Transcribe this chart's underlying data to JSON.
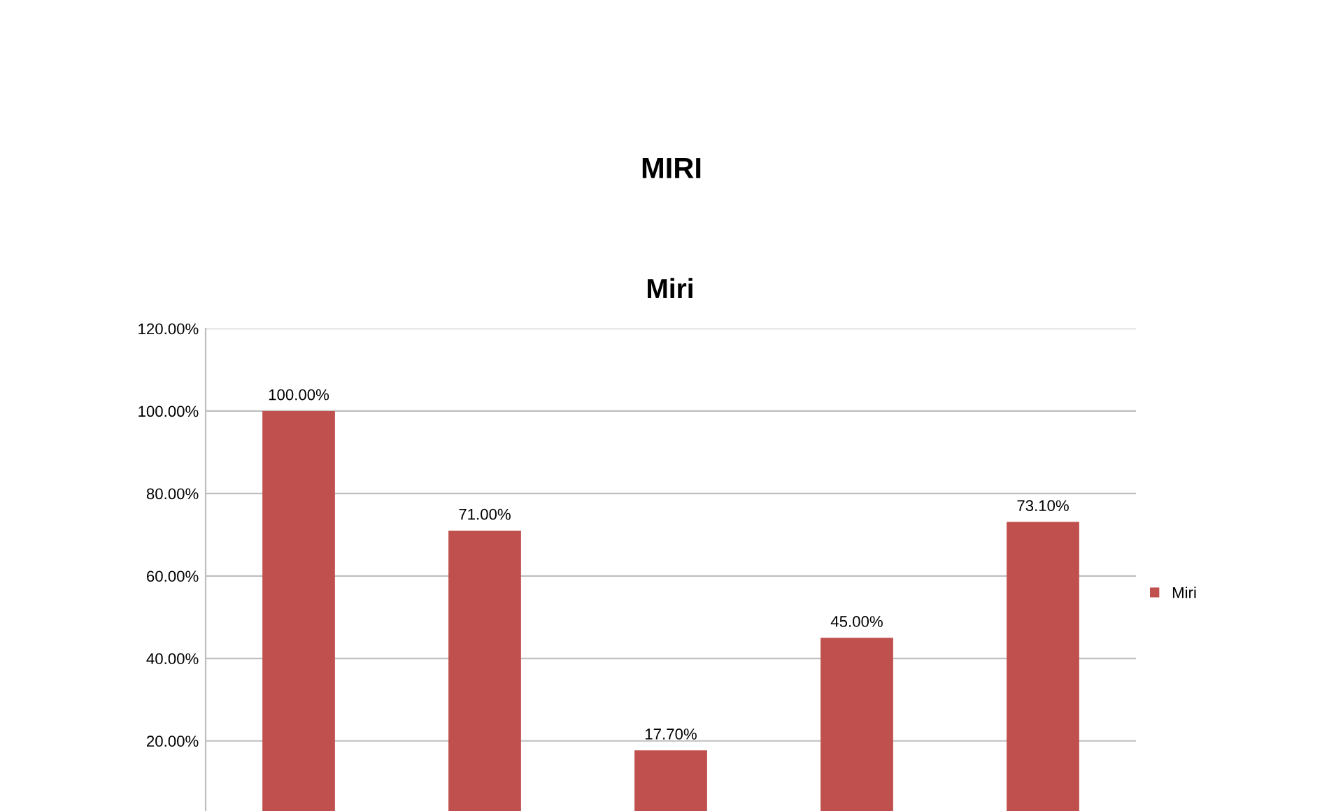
{
  "chart_data": {
    "type": "bar",
    "title": "MIRI",
    "subtitle": "Miri",
    "categories": [
      null,
      null,
      null,
      null,
      null
    ],
    "series": [
      {
        "name": "Miri",
        "color": "#c0504d",
        "values": [
          100,
          71,
          17.7,
          45,
          73.1
        ],
        "value_labels": [
          "100.00%",
          "71.00%",
          "17.70%",
          "45.00%",
          "73.10%"
        ]
      }
    ],
    "ylim": [
      3,
      120
    ],
    "yticks": [
      {
        "value": 20,
        "label": "20.00%"
      },
      {
        "value": 40,
        "label": "40.00%"
      },
      {
        "value": 60,
        "label": "60.00%"
      },
      {
        "value": 80,
        "label": "80.00%"
      },
      {
        "value": 100,
        "label": "100.00%"
      },
      {
        "value": 120,
        "label": "120.00%"
      }
    ],
    "grid": "y",
    "legend": "right"
  }
}
